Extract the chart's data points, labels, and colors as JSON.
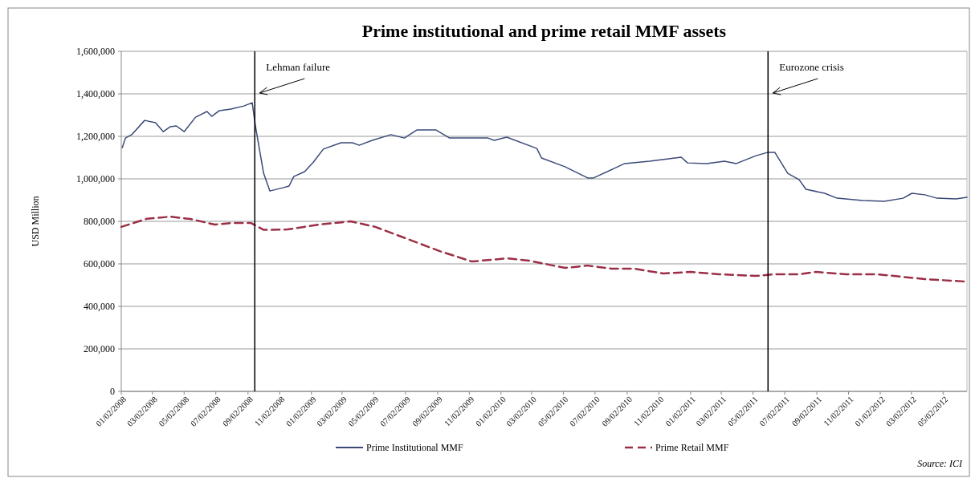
{
  "chart_data": {
    "type": "line",
    "title": "Prime institutional and prime retail MMF assets",
    "ylabel": "USD Million",
    "xlim": [
      "2008-01-02",
      "2012-06-17"
    ],
    "xticks": [
      {
        "value": "2008-01-02",
        "label": "01/02/2008"
      },
      {
        "value": "2008-03-02",
        "label": "03/02/2008"
      },
      {
        "value": "2008-05-02",
        "label": "05/02/2008"
      },
      {
        "value": "2008-07-02",
        "label": "07/02/2008"
      },
      {
        "value": "2008-09-02",
        "label": "09/02/2008"
      },
      {
        "value": "2008-11-02",
        "label": "11/02/2008"
      },
      {
        "value": "2009-01-02",
        "label": "01/02/2009"
      },
      {
        "value": "2009-03-02",
        "label": "03/02/2009"
      },
      {
        "value": "2009-05-02",
        "label": "05/02/2009"
      },
      {
        "value": "2009-07-02",
        "label": "07/02/2009"
      },
      {
        "value": "2009-09-02",
        "label": "09/02/2009"
      },
      {
        "value": "2009-11-02",
        "label": "11/02/2009"
      },
      {
        "value": "2010-01-02",
        "label": "01/02/2010"
      },
      {
        "value": "2010-03-02",
        "label": "03/02/2010"
      },
      {
        "value": "2010-05-02",
        "label": "05/02/2010"
      },
      {
        "value": "2010-07-02",
        "label": "07/02/2010"
      },
      {
        "value": "2010-09-02",
        "label": "09/02/2010"
      },
      {
        "value": "2010-11-02",
        "label": "11/02/2010"
      },
      {
        "value": "2011-01-02",
        "label": "01/02/2011"
      },
      {
        "value": "2011-03-02",
        "label": "03/02/2011"
      },
      {
        "value": "2011-05-02",
        "label": "05/02/2011"
      },
      {
        "value": "2011-07-02",
        "label": "07/02/2011"
      },
      {
        "value": "2011-09-02",
        "label": "09/02/2011"
      },
      {
        "value": "2011-11-02",
        "label": "11/02/2011"
      },
      {
        "value": "2012-01-02",
        "label": "01/02/2012"
      },
      {
        "value": "2012-03-02",
        "label": "03/02/2012"
      },
      {
        "value": "2012-05-02",
        "label": "05/02/2012"
      }
    ],
    "ylim": [
      0,
      1600000
    ],
    "yticks": [
      0,
      {
        "value": 200000,
        "label": "200,000"
      },
      {
        "value": 400000,
        "label": "400,000"
      },
      {
        "value": 600000,
        "label": "600,000"
      },
      {
        "value": 800000,
        "label": "800,000"
      },
      {
        "value": 1000000,
        "label": "1,000,000"
      },
      {
        "value": 1200000,
        "label": "1,200,000"
      },
      {
        "value": 1400000,
        "label": "1,400,000"
      },
      {
        "value": 1600000,
        "label": "1,600,000"
      }
    ],
    "grid": "y",
    "legend": "bottom",
    "series": [
      {
        "name": "Prime Institutional MMF",
        "color": "#3b4a78",
        "line_style": "solid",
        "x": [
          "2008-01-04",
          "2008-01-10",
          "2008-01-22",
          "2008-02-16",
          "2008-03-08",
          "2008-03-23",
          "2008-04-05",
          "2008-04-17",
          "2008-05-02",
          "2008-05-24",
          "2008-06-15",
          "2008-06-24",
          "2008-07-09",
          "2008-07-31",
          "2008-08-25",
          "2008-09-10",
          "2008-09-17",
          "2008-10-02",
          "2008-10-14",
          "2008-11-08",
          "2008-11-20",
          "2008-11-29",
          "2008-12-20",
          "2009-01-06",
          "2009-01-25",
          "2009-02-28",
          "2009-03-22",
          "2009-04-04",
          "2009-04-29",
          "2009-06-04",
          "2009-06-30",
          "2009-07-24",
          "2009-08-30",
          "2009-09-25",
          "2009-10-31",
          "2009-12-08",
          "2009-12-20",
          "2010-01-13",
          "2010-03-12",
          "2010-03-21",
          "2010-05-05",
          "2010-06-18",
          "2010-06-29",
          "2010-08-28",
          "2010-10-15",
          "2010-12-15",
          "2010-12-27",
          "2011-02-02",
          "2011-03-08",
          "2011-03-31",
          "2011-05-08",
          "2011-05-31",
          "2011-06-13",
          "2011-07-08",
          "2011-07-30",
          "2011-08-12",
          "2011-09-17",
          "2011-10-11",
          "2011-11-29",
          "2012-01-10",
          "2012-02-15",
          "2012-03-03",
          "2012-03-28",
          "2012-04-20",
          "2012-05-27",
          "2012-06-17"
        ],
        "values": [
          1147000,
          1192000,
          1208000,
          1275000,
          1264000,
          1222000,
          1245000,
          1249000,
          1222000,
          1290000,
          1317000,
          1294000,
          1321000,
          1328000,
          1343000,
          1358000,
          1238000,
          1026000,
          943000,
          958000,
          966000,
          1011000,
          1034000,
          1079000,
          1140000,
          1170000,
          1170000,
          1158000,
          1181000,
          1208000,
          1192000,
          1230000,
          1230000,
          1192000,
          1192000,
          1192000,
          1181000,
          1196000,
          1143000,
          1098000,
          1057000,
          1004000,
          1004000,
          1072000,
          1083000,
          1102000,
          1075000,
          1072000,
          1083000,
          1072000,
          1109000,
          1125000,
          1125000,
          1026000,
          996000,
          951000,
          932000,
          909000,
          898000,
          894000,
          909000,
          932000,
          925000,
          909000,
          906000,
          913000
        ]
      },
      {
        "name": "Prime Retail MMF",
        "color": "#9b2f45",
        "line_style": "dashed",
        "x": [
          "2008-01-02",
          "2008-02-20",
          "2008-04-06",
          "2008-05-14",
          "2008-06-30",
          "2008-07-31",
          "2008-09-08",
          "2008-10-02",
          "2008-11-17",
          "2009-01-18",
          "2009-03-19",
          "2009-05-05",
          "2009-07-06",
          "2009-09-06",
          "2009-11-07",
          "2010-01-14",
          "2010-02-25",
          "2010-05-05",
          "2010-06-18",
          "2010-08-04",
          "2010-09-16",
          "2010-11-10",
          "2011-01-03",
          "2011-02-25",
          "2011-05-08",
          "2011-06-13",
          "2011-07-30",
          "2011-08-31",
          "2011-10-29",
          "2011-12-28",
          "2012-03-28",
          "2012-06-14"
        ],
        "values": [
          774000,
          812000,
          822000,
          811000,
          785000,
          792000,
          792000,
          760000,
          762000,
          785000,
          800000,
          774000,
          717000,
          660000,
          611000,
          626000,
          615000,
          581000,
          592000,
          577000,
          577000,
          555000,
          562000,
          551000,
          543000,
          551000,
          551000,
          562000,
          551000,
          551000,
          528000,
          517000
        ]
      }
    ],
    "ref_lines": [
      {
        "axis": "x",
        "value": "2008-09-15",
        "label": "Lehman failure",
        "color": "#000000"
      },
      {
        "axis": "x",
        "value": "2011-05-31",
        "label": "Eurozone crisis",
        "color": "#000000"
      }
    ],
    "annotations": [
      "Source: ICI"
    ]
  }
}
